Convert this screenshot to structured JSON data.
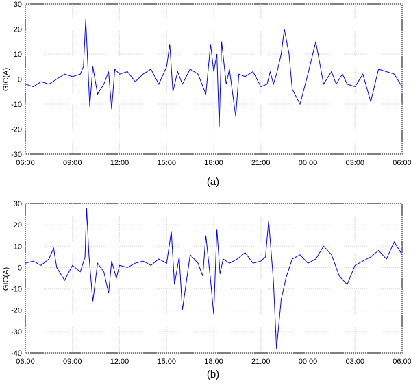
{
  "chart_data": [
    {
      "type": "line",
      "caption": "(a)",
      "ylabel": "GIC(A)",
      "ylim": [
        -30,
        30
      ],
      "yticks": [
        30,
        20,
        10,
        0,
        -10,
        -20,
        -30
      ],
      "xlim": [
        0,
        24
      ],
      "xticks": [
        "06:00",
        "09:00",
        "12:00",
        "15:00",
        "18:00",
        "21:00",
        "00:00",
        "03:00",
        "06:00"
      ],
      "grid": true,
      "series": [
        {
          "color": "#0000ff",
          "x": [
            0,
            0.5,
            1,
            1.5,
            2,
            2.5,
            3,
            3.5,
            3.7,
            3.85,
            3.95,
            4.1,
            4.3,
            4.6,
            5,
            5.3,
            5.5,
            5.7,
            6,
            6.5,
            7,
            7.5,
            8,
            8.5,
            9,
            9.2,
            9.4,
            9.7,
            10,
            10.5,
            11,
            11.5,
            11.8,
            12,
            12.2,
            12.35,
            12.5,
            12.8,
            13,
            13.4,
            13.6,
            14,
            14.5,
            15,
            15.4,
            15.6,
            15.8,
            16,
            16.3,
            16.5,
            16.8,
            17,
            17.5,
            18,
            18.5,
            19,
            19.5,
            19.8,
            20,
            20.2,
            20.5,
            21,
            21.5,
            22,
            22.5,
            23,
            23.5,
            24
          ],
          "y": [
            -2,
            -3,
            -1,
            -2,
            0,
            2,
            1,
            2,
            5,
            24,
            10,
            -11,
            5,
            -6,
            -2,
            3,
            -12,
            4,
            2,
            3,
            -1,
            2,
            4,
            -2,
            5,
            14,
            -5,
            3,
            -2,
            4,
            2,
            -6,
            14,
            3,
            10,
            -19,
            15,
            -2,
            4,
            -15,
            2,
            1,
            3,
            -3,
            -2,
            3,
            -2,
            2,
            10,
            20,
            10,
            -4,
            -10,
            2,
            15,
            -2,
            3,
            -2,
            0,
            2,
            -2,
            -3,
            2,
            -9,
            4,
            3,
            2,
            -3
          ]
        }
      ]
    },
    {
      "type": "line",
      "caption": "(b)",
      "ylabel": "GIC(A)",
      "ylim": [
        -40,
        30
      ],
      "yticks": [
        30,
        20,
        10,
        0,
        -10,
        -20,
        -30,
        -40
      ],
      "xlim": [
        0,
        24
      ],
      "xticks": [
        "06:00",
        "09:00",
        "12:00",
        "15:00",
        "18:00",
        "21:00",
        "00:00",
        "03:00",
        "06:00"
      ],
      "grid": true,
      "series": [
        {
          "color": "#0000ff",
          "x": [
            0,
            0.5,
            1,
            1.5,
            1.8,
            2,
            2.5,
            3,
            3.5,
            3.8,
            3.9,
            4.05,
            4.3,
            4.6,
            5,
            5.3,
            5.5,
            5.8,
            6,
            6.5,
            7,
            7.5,
            8,
            8.5,
            9,
            9.3,
            9.5,
            9.8,
            10,
            10.5,
            11,
            11.3,
            11.5,
            11.8,
            12,
            12.2,
            12.4,
            12.6,
            13,
            13.5,
            14,
            14.5,
            15,
            15.3,
            15.5,
            15.8,
            16,
            16.3,
            16.6,
            17,
            17.5,
            18,
            18.5,
            19,
            19.5,
            20,
            20.5,
            21,
            21.5,
            22,
            22.5,
            23,
            23.5,
            24
          ],
          "y": [
            2,
            3,
            1,
            4,
            9,
            0,
            -6,
            1,
            -2,
            5,
            28,
            6,
            -16,
            2,
            -2,
            -12,
            3,
            -5,
            1,
            0,
            2,
            3,
            1,
            4,
            2,
            17,
            -8,
            5,
            -20,
            6,
            2,
            -4,
            15,
            -6,
            -22,
            18,
            -3,
            4,
            2,
            4,
            7,
            2,
            3,
            5,
            22,
            -6,
            -38,
            -15,
            -5,
            4,
            6,
            2,
            4,
            10,
            6,
            -4,
            -8,
            1,
            3,
            5,
            8,
            4,
            12,
            6
          ]
        }
      ]
    }
  ]
}
